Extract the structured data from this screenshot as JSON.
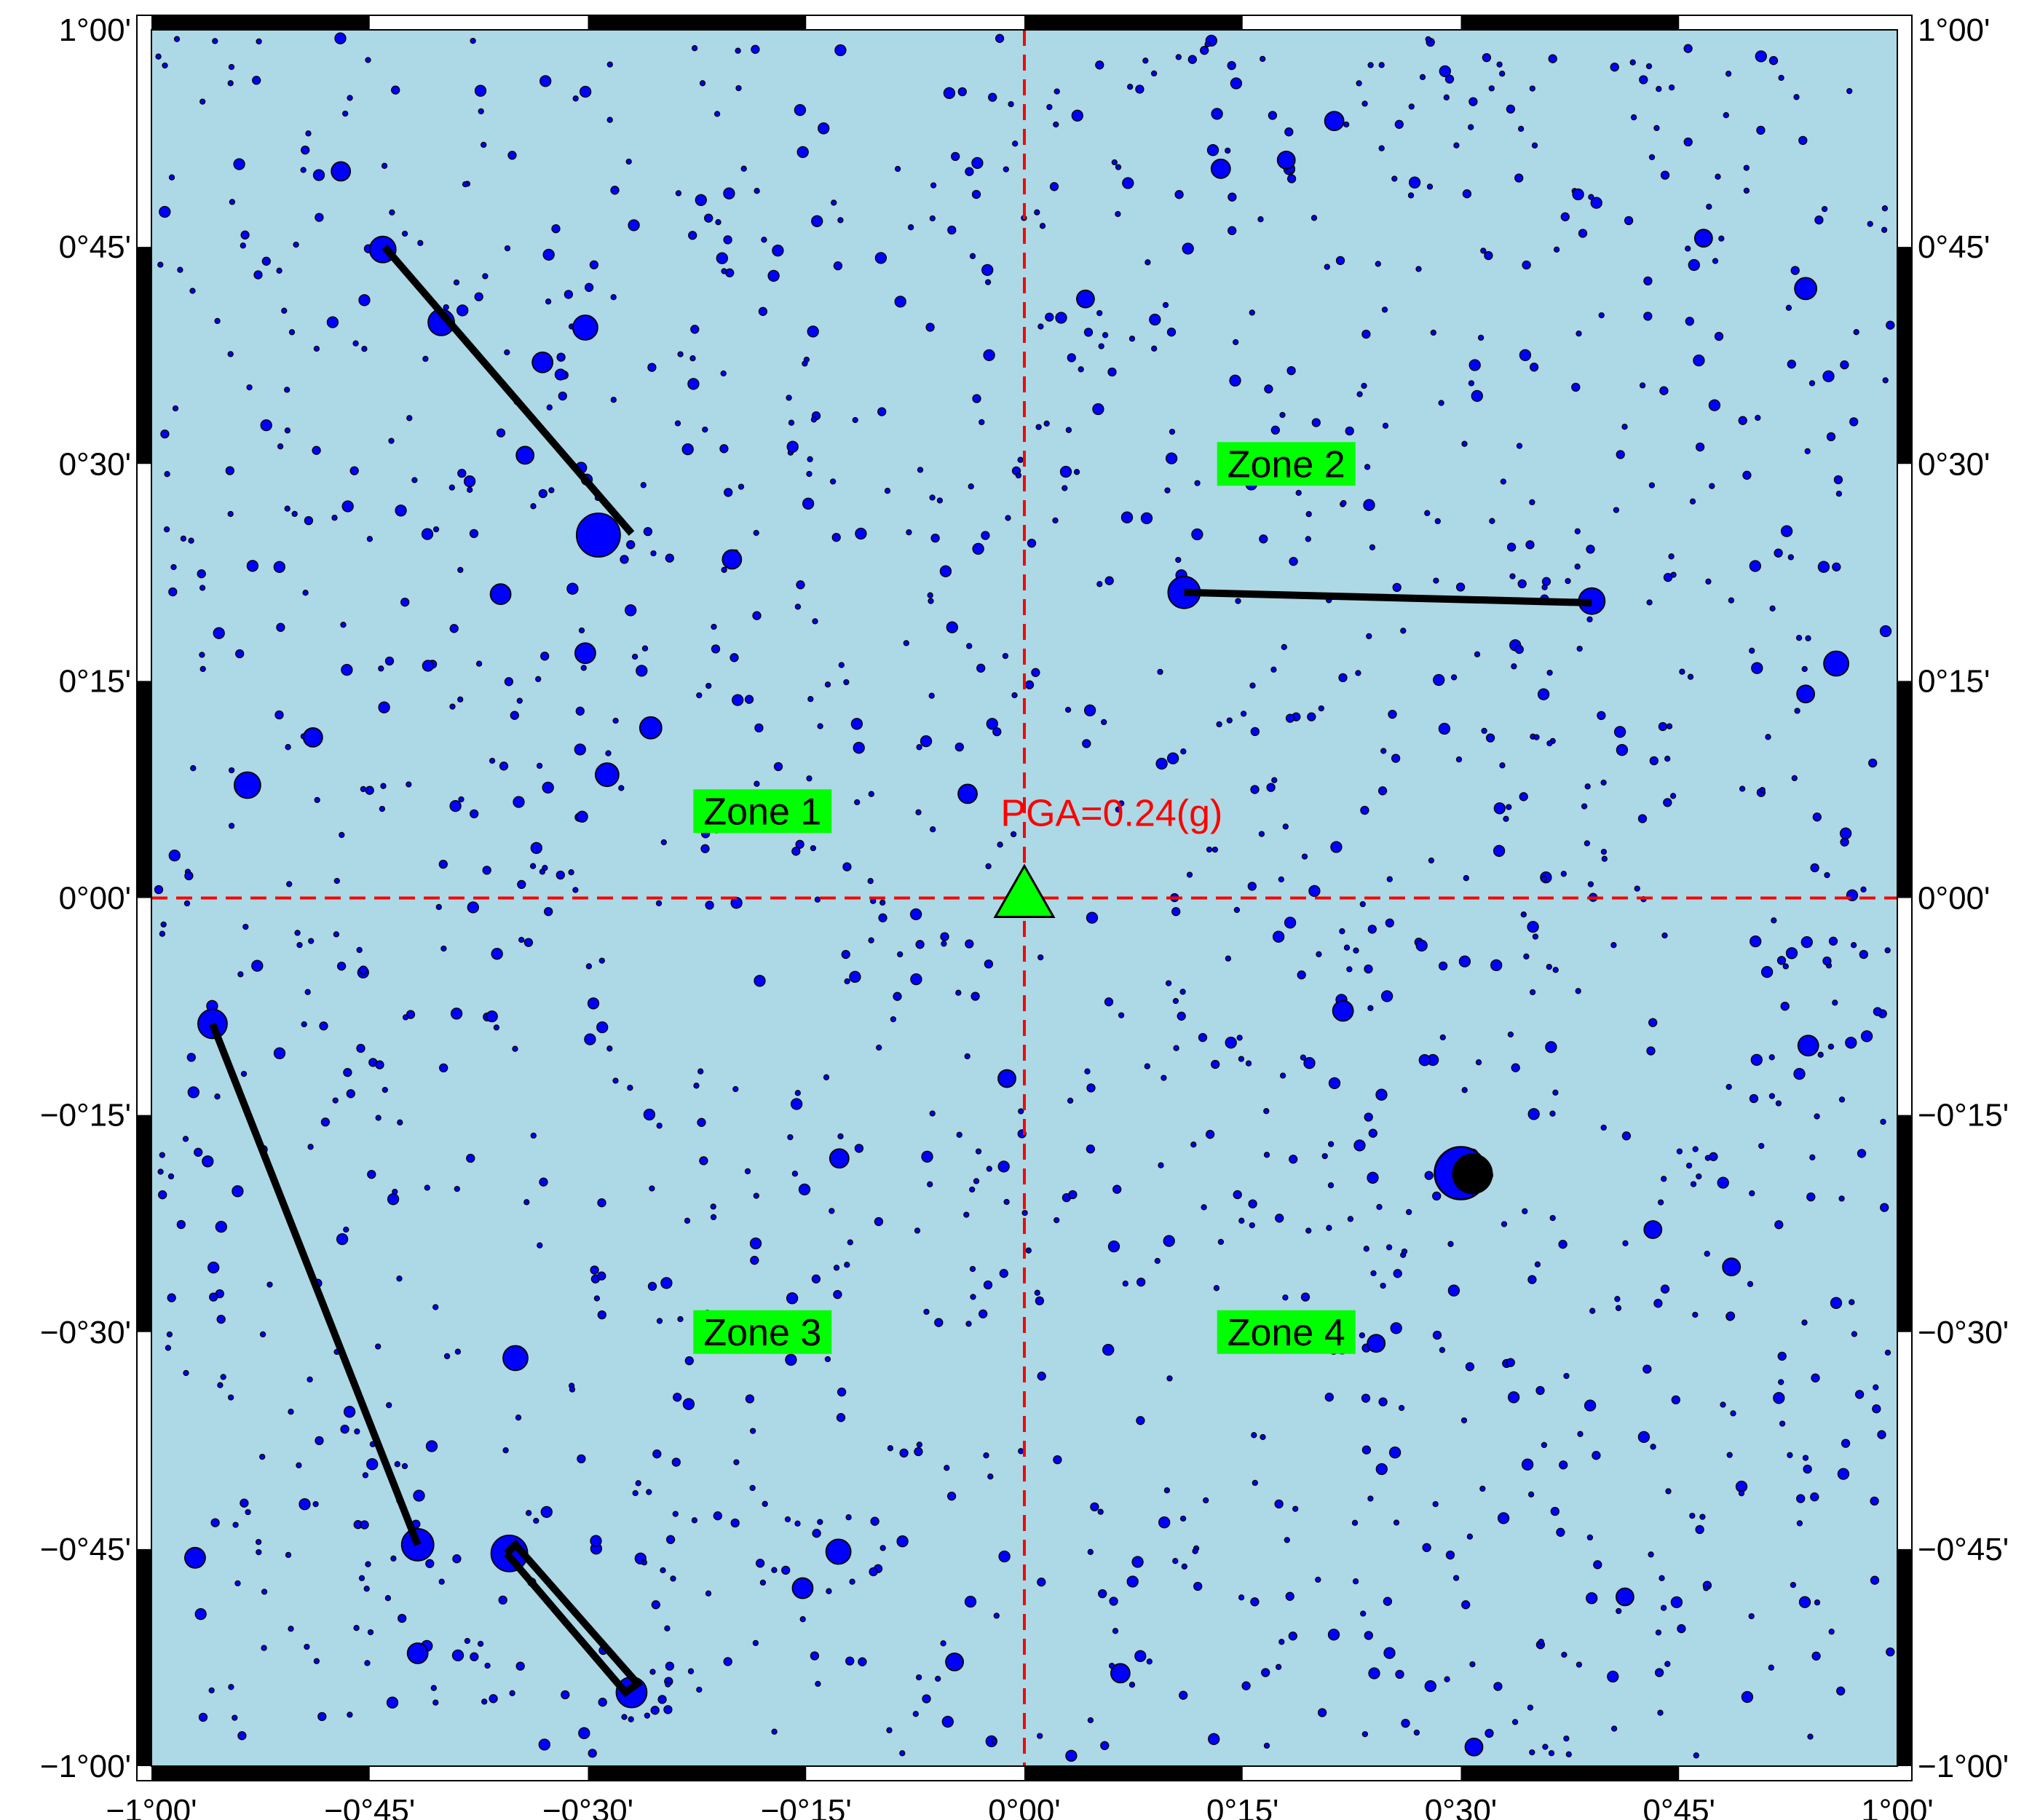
{
  "map": {
    "extent": {
      "lon_min": -1.0,
      "lon_max": 1.0,
      "lat_min": -1.0,
      "lat_max": 1.0
    },
    "colors": {
      "background": "#add8e6",
      "event_fill": "#0000ff",
      "event_stroke": "#000000",
      "crosshair": "#ff0000",
      "zone_box": "#00ff00",
      "station": "#00ff00",
      "fault": "#000000",
      "pga_text": "#ff0000"
    },
    "x_ticks": [
      "−1°00'",
      "−0°45'",
      "−0°30'",
      "−0°15'",
      "0°00'",
      "0°15'",
      "0°30'",
      "0°45'",
      "1°00'"
    ],
    "y_ticks": [
      "1°00'",
      "0°45'",
      "0°30'",
      "0°15'",
      "0°00'",
      "−0°15'",
      "−0°30'",
      "−0°45'",
      "−1°00'"
    ],
    "x_tick_values": [
      -1.0,
      -0.75,
      -0.5,
      -0.25,
      0.0,
      0.25,
      0.5,
      0.75,
      1.0
    ],
    "y_tick_values": [
      1.0,
      0.75,
      0.5,
      0.25,
      0.0,
      -0.25,
      -0.5,
      -0.75,
      -1.0
    ],
    "zones": [
      {
        "label": "Zone 1",
        "lon": -0.3,
        "lat": 0.1
      },
      {
        "label": "Zone 2",
        "lon": 0.3,
        "lat": 0.5
      },
      {
        "label": "Zone 3",
        "lon": -0.3,
        "lat": -0.5
      },
      {
        "label": "Zone 4",
        "lon": 0.3,
        "lat": -0.5
      }
    ],
    "station": {
      "lon": 0.0,
      "lat": 0.0,
      "symbol": "triangle"
    },
    "pga_label": {
      "text": "PGA=0.24(g)",
      "lon": 0.1,
      "lat": 0.1
    },
    "main_event": {
      "lon": 0.5,
      "lat": -0.317,
      "magnitude_class": "large"
    },
    "faults": [
      {
        "name": "NW",
        "points": [
          [
            -0.733,
            0.75
          ],
          [
            -0.45,
            0.42
          ]
        ]
      },
      {
        "name": "NE",
        "points": [
          [
            0.183,
            0.352
          ],
          [
            0.65,
            0.34
          ]
        ]
      },
      {
        "name": "SW",
        "points": [
          [
            -0.93,
            -0.145
          ],
          [
            -0.695,
            -0.745
          ]
        ]
      },
      {
        "name": "S",
        "points": [
          [
            -0.593,
            -0.755
          ],
          [
            -0.457,
            -0.915
          ],
          [
            -0.443,
            -0.905
          ],
          [
            -0.583,
            -0.745
          ],
          [
            -0.593,
            -0.755
          ]
        ]
      }
    ],
    "large_events": [
      [
        -0.735,
        0.747,
        18
      ],
      [
        -0.668,
        0.663,
        18
      ],
      [
        -0.503,
        0.657,
        17
      ],
      [
        -0.552,
        0.617,
        14
      ],
      [
        -0.488,
        0.418,
        30
      ],
      [
        -0.572,
        0.51,
        12
      ],
      [
        -0.6,
        0.35,
        14
      ],
      [
        -0.503,
        0.282,
        14
      ],
      [
        -0.478,
        0.142,
        16
      ],
      [
        -0.428,
        0.196,
        15
      ],
      [
        -0.89,
        0.13,
        18
      ],
      [
        -0.815,
        0.185,
        13
      ],
      [
        -0.783,
        0.837,
        13
      ],
      [
        -0.335,
        0.39,
        13
      ],
      [
        -0.065,
        0.12,
        13
      ],
      [
        0.183,
        0.352,
        22
      ],
      [
        0.65,
        0.342,
        18
      ],
      [
        0.225,
        0.84,
        13
      ],
      [
        0.355,
        0.895,
        13
      ],
      [
        0.895,
        0.702,
        15
      ],
      [
        0.93,
        0.27,
        17
      ],
      [
        0.895,
        0.235,
        12
      ],
      [
        0.778,
        0.76,
        12
      ],
      [
        -0.93,
        -0.145,
        20
      ],
      [
        -0.695,
        -0.745,
        22
      ],
      [
        -0.59,
        -0.755,
        25
      ],
      [
        -0.45,
        -0.915,
        21
      ],
      [
        -0.583,
        -0.53,
        17
      ],
      [
        -0.95,
        -0.76,
        14
      ],
      [
        -0.695,
        -0.87,
        14
      ],
      [
        -0.213,
        -0.753,
        17
      ],
      [
        -0.254,
        -0.795,
        14
      ],
      [
        -0.212,
        -0.3,
        13
      ],
      [
        -0.02,
        -0.208,
        12
      ],
      [
        0.365,
        -0.13,
        14
      ],
      [
        0.5,
        -0.317,
        32
      ],
      [
        0.898,
        -0.17,
        14
      ],
      [
        0.81,
        -0.425,
        12
      ],
      [
        0.72,
        -0.382,
        12
      ],
      [
        0.515,
        -0.978,
        12
      ],
      [
        0.11,
        -0.893,
        13
      ],
      [
        0.688,
        -0.805,
        12
      ],
      [
        -0.08,
        -0.88,
        12
      ],
      [
        0.33,
        -0.51,
        12
      ],
      [
        0.403,
        -0.513,
        12
      ],
      [
        0.3,
        0.85,
        12
      ],
      [
        0.07,
        0.69,
        12
      ]
    ]
  }
}
